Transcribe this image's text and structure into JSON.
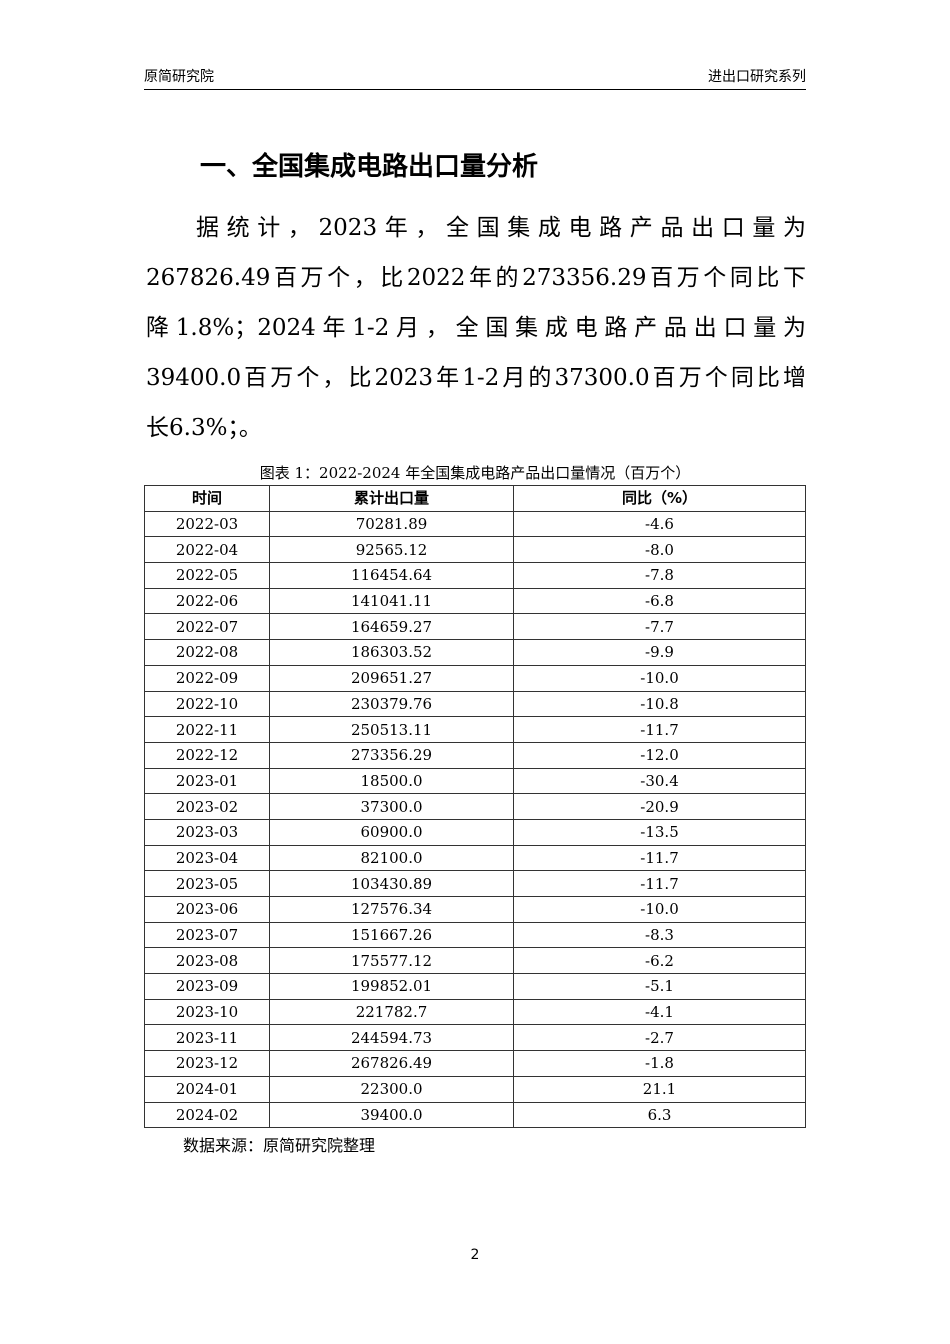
{
  "header": {
    "left": "原简研究院",
    "right": "进出口研究系列"
  },
  "section_title": "一、全国集成电路出口量分析",
  "paragraph_lines": [
    "据统计，2023年，全国集成电路产品出口量为",
    "267826.49百万个，比2022年的273356.29百万个同比下",
    "降1.8%；2024年1-2月，全国集成电路产品出口量为",
    "39400.0百万个，比2023年1-2月的37300.0百万个同比增",
    "长6.3%；。"
  ],
  "table": {
    "caption": "图表 1：2022-2024 年全国集成电路产品出口量情况（百万个）",
    "columns": [
      "时间",
      "累计出口量",
      "同比（%）"
    ],
    "rows": [
      [
        "2022-03",
        "70281.89",
        "-4.6"
      ],
      [
        "2022-04",
        "92565.12",
        "-8.0"
      ],
      [
        "2022-05",
        "116454.64",
        "-7.8"
      ],
      [
        "2022-06",
        "141041.11",
        "-6.8"
      ],
      [
        "2022-07",
        "164659.27",
        "-7.7"
      ],
      [
        "2022-08",
        "186303.52",
        "-9.9"
      ],
      [
        "2022-09",
        "209651.27",
        "-10.0"
      ],
      [
        "2022-10",
        "230379.76",
        "-10.8"
      ],
      [
        "2022-11",
        "250513.11",
        "-11.7"
      ],
      [
        "2022-12",
        "273356.29",
        "-12.0"
      ],
      [
        "2023-01",
        "18500.0",
        "-30.4"
      ],
      [
        "2023-02",
        "37300.0",
        "-20.9"
      ],
      [
        "2023-03",
        "60900.0",
        "-13.5"
      ],
      [
        "2023-04",
        "82100.0",
        "-11.7"
      ],
      [
        "2023-05",
        "103430.89",
        "-11.7"
      ],
      [
        "2023-06",
        "127576.34",
        "-10.0"
      ],
      [
        "2023-07",
        "151667.26",
        "-8.3"
      ],
      [
        "2023-08",
        "175577.12",
        "-6.2"
      ],
      [
        "2023-09",
        "199852.01",
        "-5.1"
      ],
      [
        "2023-10",
        "221782.7",
        "-4.1"
      ],
      [
        "2023-11",
        "244594.73",
        "-2.7"
      ],
      [
        "2023-12",
        "267826.49",
        "-1.8"
      ],
      [
        "2024-01",
        "22300.0",
        "21.1"
      ],
      [
        "2024-02",
        "39400.0",
        "6.3"
      ]
    ],
    "source": "数据来源：原简研究院整理"
  },
  "page_number": "2"
}
